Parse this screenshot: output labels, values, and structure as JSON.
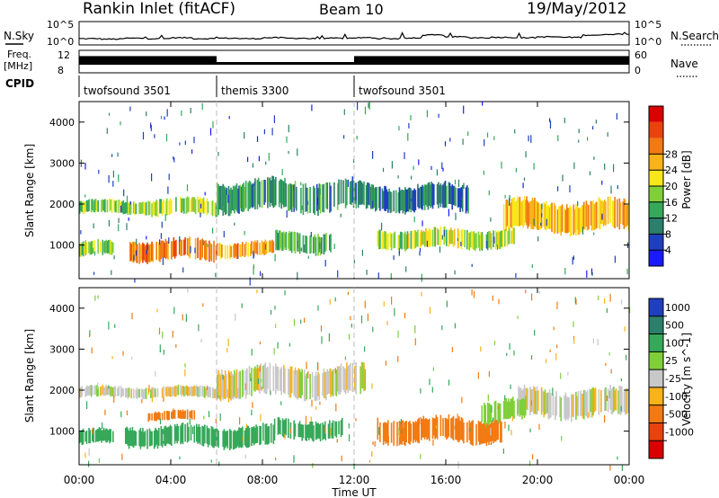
{
  "header": {
    "station": "Rankin Inlet (fitACF)",
    "beam": "Beam 10",
    "date": "19/May/2012"
  },
  "summary_panels": {
    "nsky_label": "N.Sky",
    "nsky_ticks": [
      "10^5",
      "10^0"
    ],
    "nsearch_label": "N.Search",
    "nsearch_ticks": [
      "10^5",
      "10^0"
    ],
    "freq_label": "Freq.",
    "freq_unit": "[MHz]",
    "freq_ticks": [
      "12",
      "8"
    ],
    "nave_label": "Nave",
    "nave_ticks": [
      "60",
      "0"
    ],
    "cpid_label": "CPID"
  },
  "cpid_segments": [
    {
      "name": "twofsound 3501",
      "start_hour": 0,
      "end_hour": 6
    },
    {
      "name": "themis 3300",
      "start_hour": 6,
      "end_hour": 12
    },
    {
      "name": "twofsound 3501",
      "start_hour": 12,
      "end_hour": 24
    }
  ],
  "colorbars": {
    "power": {
      "label": "Power [dB]",
      "ticks": [
        "4",
        "8",
        "12",
        "16",
        "20",
        "24",
        "28"
      ],
      "colors": [
        "#1a1aff",
        "#1f3fbf",
        "#2c7f6a",
        "#36a85a",
        "#7fcf3a",
        "#f7e71c",
        "#f9b21a",
        "#f27a12",
        "#e8430c",
        "#d90000"
      ]
    },
    "velocity": {
      "label": "Velocity [m s^-1]",
      "ticks": [
        "1000",
        "500",
        "100",
        "25",
        "-25",
        "-100",
        "-500",
        "-1000"
      ],
      "colors": [
        "#1f3fbf",
        "#2c7f6a",
        "#36a85a",
        "#7fcf3a",
        "#c8c8c8",
        "#f9b21a",
        "#f27a12",
        "#e8430c",
        "#d90000"
      ]
    }
  },
  "chart_data": {
    "type": "heatmap",
    "title": "Rankin Inlet (fitACF)",
    "subtitle": "Beam 10",
    "date": "19/May/2012",
    "xlabel": "Time UT",
    "x_ticks": [
      "00:00",
      "04:00",
      "08:00",
      "12:00",
      "16:00",
      "20:00",
      "00:00"
    ],
    "xlim_hours": [
      0,
      24
    ],
    "ylabel": "Slant Range [km]",
    "y_ticks": [
      1000,
      2000,
      3000,
      4000
    ],
    "ylim_km": [
      180,
      4500
    ],
    "panels": [
      {
        "name": "power",
        "quantity": "Power [dB]",
        "echo_regions": [
          {
            "t0": 0.0,
            "t1": 3.0,
            "r0": 1750,
            "r1": 2100,
            "level_db": 14
          },
          {
            "t0": 3.0,
            "t1": 6.0,
            "r0": 1700,
            "r1": 2150,
            "level_db": 16
          },
          {
            "t0": 6.0,
            "t1": 12.0,
            "r0": 1800,
            "r1": 2600,
            "level_db": 10
          },
          {
            "t0": 0.0,
            "t1": 1.5,
            "r0": 700,
            "r1": 1100,
            "level_db": 14
          },
          {
            "t0": 2.2,
            "t1": 6.0,
            "r0": 600,
            "r1": 1150,
            "level_db": 24
          },
          {
            "t0": 6.0,
            "t1": 8.5,
            "r0": 700,
            "r1": 1100,
            "level_db": 22
          },
          {
            "t0": 8.5,
            "t1": 11.0,
            "r0": 800,
            "r1": 1350,
            "level_db": 12
          },
          {
            "t0": 13.0,
            "t1": 19.0,
            "r0": 900,
            "r1": 1400,
            "level_db": 16
          },
          {
            "t0": 18.5,
            "t1": 24.0,
            "r0": 1300,
            "r1": 2100,
            "level_db": 20
          },
          {
            "t0": 12.0,
            "t1": 17.0,
            "r0": 1800,
            "r1": 2500,
            "level_db": 8
          }
        ]
      },
      {
        "name": "velocity",
        "quantity": "Velocity [m s^-1]",
        "echo_regions": [
          {
            "t0": 0.0,
            "t1": 7.0,
            "r0": 1800,
            "r1": 2100,
            "velocity": 0
          },
          {
            "t0": 6.0,
            "t1": 12.5,
            "r0": 1800,
            "r1": 2600,
            "velocity": 0
          },
          {
            "t0": 19.0,
            "t1": 24.0,
            "r0": 1300,
            "r1": 2050,
            "velocity": 0
          },
          {
            "t0": 0.0,
            "t1": 1.5,
            "r0": 650,
            "r1": 1050,
            "velocity": 150
          },
          {
            "t0": 2.0,
            "t1": 8.5,
            "r0": 600,
            "r1": 1150,
            "velocity": 200
          },
          {
            "t0": 8.5,
            "t1": 11.5,
            "r0": 800,
            "r1": 1300,
            "velocity": 150
          },
          {
            "t0": 13.0,
            "t1": 18.5,
            "r0": 700,
            "r1": 1350,
            "velocity": -300
          },
          {
            "t0": 17.5,
            "t1": 19.5,
            "r0": 1200,
            "r1": 1800,
            "velocity": 60
          },
          {
            "t0": 3.0,
            "t1": 5.0,
            "r0": 1250,
            "r1": 1500,
            "velocity": -150
          }
        ]
      }
    ],
    "nsky_series_log": [
      0.5,
      0.45,
      0.55,
      0.5,
      0.6,
      0.5,
      0.55,
      0.5,
      0.6,
      0.55,
      0.5,
      0.55,
      0.6,
      0.5,
      0.55,
      0.9,
      0.7,
      0.6,
      0.65,
      0.6,
      0.7,
      0.65,
      0.9,
      1.0
    ],
    "freq_mhz": [
      11.2,
      11.2,
      11.2,
      11.2,
      11.2,
      11.2,
      10.0,
      10.0,
      10.0,
      10.0,
      10.0,
      10.0,
      11.2,
      11.2,
      11.2,
      11.2,
      11.2,
      11.2,
      11.2,
      11.2,
      11.2,
      11.2,
      11.2,
      11.2
    ],
    "nave": [
      26,
      26,
      26,
      26,
      26,
      26,
      22,
      22,
      22,
      22,
      22,
      22,
      26,
      26,
      26,
      26,
      26,
      26,
      26,
      26,
      26,
      26,
      26,
      26
    ]
  }
}
